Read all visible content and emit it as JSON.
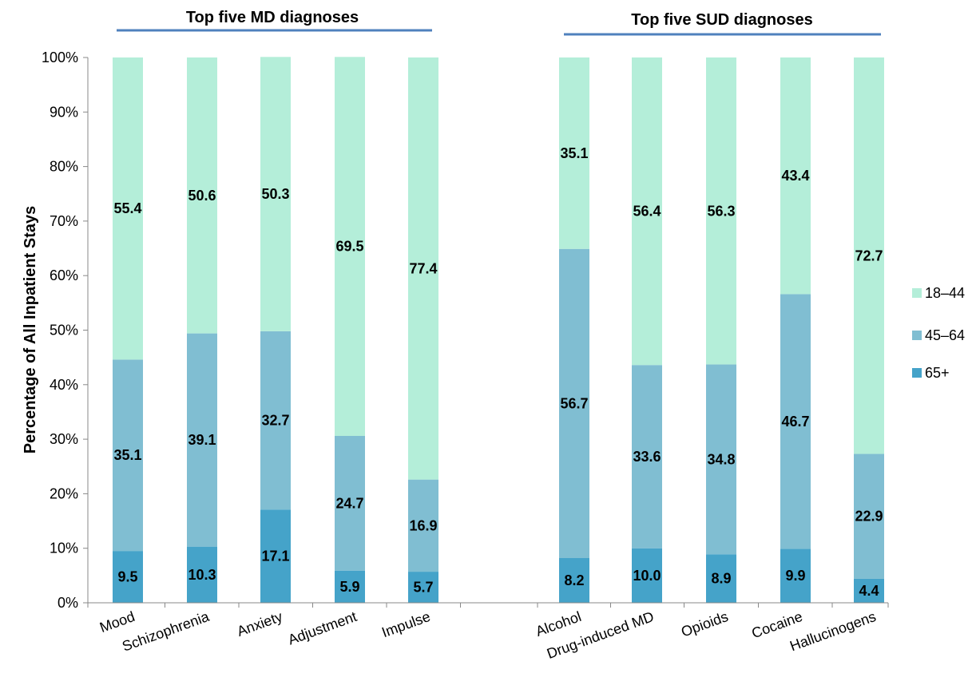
{
  "chart_data": {
    "type": "bar",
    "stacked": true,
    "percent_stacked": true,
    "ylabel": "Percentage of All Inpatient Stays",
    "ylim": [
      0,
      100
    ],
    "yticks": [
      "0%",
      "10%",
      "20%",
      "30%",
      "40%",
      "50%",
      "60%",
      "70%",
      "80%",
      "90%",
      "100%"
    ],
    "grid": false,
    "legend_position": "right",
    "groups": [
      {
        "title": "Top five MD diagnoses",
        "categories": [
          "Mood",
          "Schizophrenia",
          "Anxiety",
          "Adjustment",
          "Impulse"
        ]
      },
      {
        "title": "Top five SUD diagnoses",
        "categories": [
          "Alcohol",
          "Drug-induced MD",
          "Opioids",
          "Cocaine",
          "Hallucinogens"
        ]
      }
    ],
    "categories": [
      "Mood",
      "Schizophrenia",
      "Anxiety",
      "Adjustment",
      "Impulse",
      "Alcohol",
      "Drug-induced MD",
      "Opioids",
      "Cocaine",
      "Hallucinogens"
    ],
    "series": [
      {
        "name": "65+",
        "color": "#45a3c9",
        "values": [
          9.5,
          10.3,
          17.1,
          5.9,
          5.7,
          8.2,
          10.0,
          8.9,
          9.9,
          4.4
        ],
        "labels": [
          "9.5",
          "10.3",
          "17.1",
          "5.9",
          "5.7",
          "8.2",
          "10.0",
          "8.9",
          "9.9",
          "4.4"
        ]
      },
      {
        "name": "45–64",
        "color": "#80bed2",
        "values": [
          35.1,
          39.1,
          32.7,
          24.7,
          16.9,
          56.7,
          33.6,
          34.8,
          46.7,
          22.9
        ],
        "labels": [
          "35.1",
          "39.1",
          "32.7",
          "24.7",
          "16.9",
          "56.7",
          "33.6",
          "34.8",
          "46.7",
          "22.9"
        ]
      },
      {
        "name": "18–44",
        "color": "#b4eed9",
        "values": [
          55.4,
          50.6,
          50.3,
          69.5,
          77.4,
          35.1,
          56.4,
          56.3,
          43.4,
          72.7
        ],
        "labels": [
          "55.4",
          "50.6",
          "50.3",
          "69.5",
          "77.4",
          "35.1",
          "56.4",
          "56.3",
          "43.4",
          "72.7"
        ]
      }
    ],
    "legend_order": [
      "18–44",
      "45–64",
      "65+"
    ],
    "group_underline_color": "#4f81bd"
  }
}
